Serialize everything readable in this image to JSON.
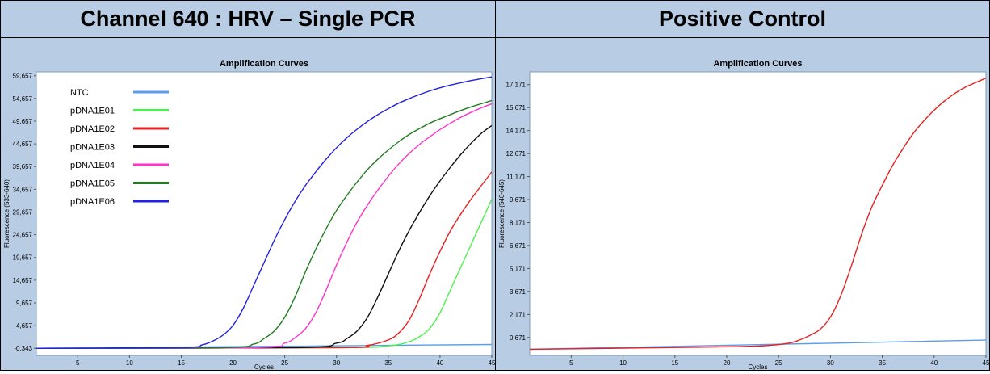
{
  "headers": {
    "left": "Channel 640 : HRV – Single PCR",
    "right": "Positive Control"
  },
  "chart_data": [
    {
      "type": "line",
      "title": "Amplification Curves",
      "xlabel": "Cycles",
      "ylabel": "Fluorescence (533-640)",
      "xlim": [
        1,
        45
      ],
      "ylim": [
        -1900,
        60500
      ],
      "xticks": [
        5,
        10,
        15,
        20,
        25,
        30,
        35,
        40,
        45
      ],
      "yticks": [
        -343,
        4657,
        9657,
        14657,
        19657,
        24657,
        29657,
        34657,
        39657,
        44657,
        49657,
        54657,
        59657
      ],
      "ytick_labels": [
        "-0,343",
        "4,657",
        "9,657",
        "14,657",
        "19,657",
        "24,657",
        "29,657",
        "34,657",
        "39,657",
        "44,657",
        "49,657",
        "54,657",
        "59,657"
      ],
      "legend_position": "top-left",
      "series": [
        {
          "name": "NTC",
          "color": "#5b9bf0",
          "x": [
            1,
            45
          ],
          "y": [
            -343,
            500
          ]
        },
        {
          "name": "pDNA1E01",
          "color": "#4cf24c",
          "x": [
            1,
            30,
            35,
            37,
            38,
            39,
            40,
            41,
            42,
            43,
            44,
            45
          ],
          "y": [
            -343,
            -200,
            200,
            1100,
            2200,
            4000,
            7500,
            12500,
            17500,
            22500,
            27500,
            32500
          ]
        },
        {
          "name": "pDNA1E02",
          "color": "#e82020",
          "x": [
            1,
            30,
            33,
            35,
            36,
            37,
            38,
            39,
            40,
            41,
            42,
            43,
            44,
            45
          ],
          "y": [
            -343,
            -200,
            300,
            1500,
            3000,
            5800,
            10500,
            16000,
            21000,
            25500,
            29200,
            32500,
            35500,
            38500
          ]
        },
        {
          "name": "pDNA1E03",
          "color": "#111111",
          "x": [
            1,
            26,
            30,
            31,
            32,
            33,
            34,
            35,
            36,
            37,
            38,
            39,
            40,
            41,
            42,
            43,
            44,
            45
          ],
          "y": [
            -343,
            -200,
            800,
            1800,
            3500,
            6500,
            11000,
            16000,
            21000,
            25500,
            29500,
            33200,
            36500,
            39500,
            42300,
            44800,
            47000,
            48700
          ]
        },
        {
          "name": "pDNA1E04",
          "color": "#ff33cc",
          "x": [
            1,
            22,
            25,
            26,
            27,
            28,
            29,
            30,
            31,
            32,
            33,
            34,
            35,
            36,
            37,
            38,
            39,
            40,
            41,
            42,
            43,
            44,
            45
          ],
          "y": [
            -343,
            -200,
            800,
            2000,
            4000,
            7500,
            12500,
            18000,
            23000,
            27500,
            31200,
            34500,
            37500,
            40200,
            42500,
            44500,
            46200,
            47800,
            49200,
            50500,
            51600,
            52600,
            53500
          ]
        },
        {
          "name": "pDNA1E05",
          "color": "#1f7d1f",
          "x": [
            1,
            19,
            22,
            23,
            24,
            25,
            26,
            27,
            28,
            29,
            30,
            31,
            32,
            33,
            34,
            35,
            36,
            37,
            38,
            39,
            40,
            41,
            42,
            43,
            44,
            45
          ],
          "y": [
            -343,
            -200,
            600,
            1800,
            3500,
            6500,
            11000,
            16500,
            21500,
            26000,
            30000,
            33300,
            36300,
            39000,
            41300,
            43300,
            45100,
            46700,
            48000,
            49200,
            50200,
            51100,
            52000,
            52800,
            53500,
            54200
          ]
        },
        {
          "name": "pDNA1E06",
          "color": "#2222dd",
          "x": [
            1,
            15,
            17,
            18,
            19,
            20,
            21,
            22,
            23,
            24,
            25,
            26,
            27,
            28,
            29,
            30,
            31,
            32,
            33,
            34,
            35,
            36,
            37,
            38,
            39,
            40,
            41,
            42,
            43,
            44,
            45
          ],
          "y": [
            -343,
            -150,
            400,
            1200,
            2500,
            4700,
            8500,
            13500,
            18500,
            23500,
            28000,
            32000,
            35500,
            38500,
            41300,
            43800,
            46000,
            47900,
            49600,
            51100,
            52400,
            53600,
            54600,
            55500,
            56300,
            57000,
            57600,
            58100,
            58600,
            59000,
            59400
          ]
        }
      ]
    },
    {
      "type": "line",
      "title": "Amplification Curves",
      "xlabel": "Cycles",
      "ylabel": "Fluorescence (540-645)",
      "xlim": [
        1,
        45
      ],
      "ylim": [
        -500,
        18000
      ],
      "xticks": [
        5,
        10,
        15,
        20,
        25,
        30,
        35,
        40,
        45
      ],
      "yticks": [
        671,
        2171,
        3671,
        5171,
        6671,
        8171,
        9671,
        11171,
        12671,
        14171,
        15671,
        17171
      ],
      "ytick_labels": [
        "0,671",
        "2,171",
        "3,671",
        "5,171",
        "6,671",
        "8,171",
        "9,671",
        "11,171",
        "12,671",
        "14,171",
        "15,671",
        "17,171"
      ],
      "series": [
        {
          "color": "#5b9bf0",
          "x": [
            1,
            45
          ],
          "y": [
            -100,
            500
          ]
        },
        {
          "color": "#e82020",
          "x": [
            1,
            20,
            24,
            26,
            27,
            28,
            29,
            30,
            31,
            32,
            33,
            34,
            35,
            36,
            37,
            38,
            39,
            40,
            41,
            42,
            43,
            44,
            45
          ],
          "y": [
            -100,
            60,
            150,
            300,
            500,
            800,
            1200,
            2000,
            3400,
            5300,
            7400,
            9200,
            10600,
            11900,
            13000,
            14000,
            14800,
            15500,
            16100,
            16600,
            17000,
            17300,
            17600
          ]
        }
      ]
    }
  ]
}
